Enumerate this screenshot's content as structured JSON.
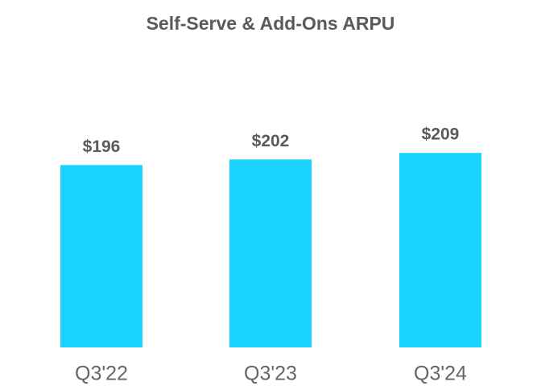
{
  "chart_data": {
    "type": "bar",
    "title": "Self-Serve & Add-Ons ARPU",
    "categories": [
      "Q3'22",
      "Q3'23",
      "Q3'24"
    ],
    "values": [
      196,
      202,
      209
    ],
    "value_labels": [
      "$196",
      "$202",
      "$209"
    ],
    "color": "#1ad4ff"
  }
}
